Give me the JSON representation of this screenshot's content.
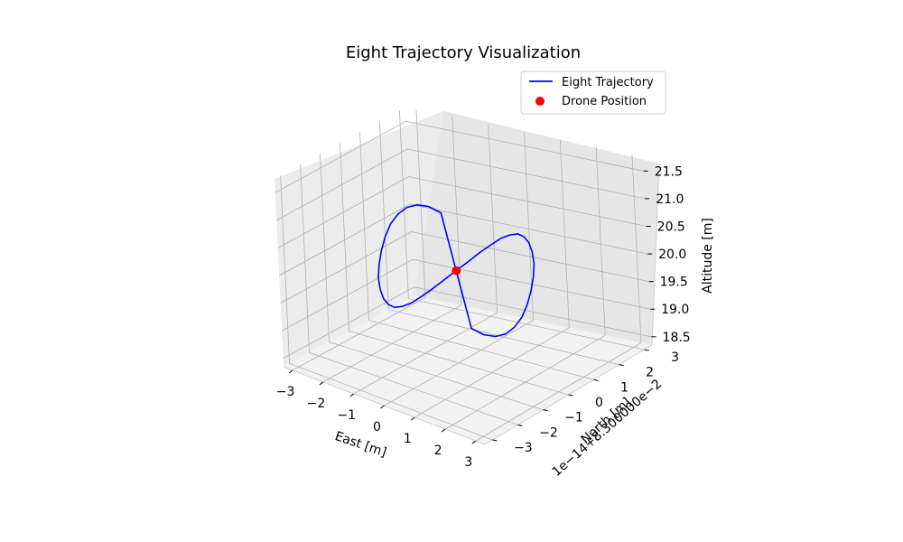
{
  "chart_data": {
    "type": "line",
    "projection": "3d",
    "title": "Eight Trajectory Visualization",
    "xlabel": "East [m]",
    "ylabel": "North [m]",
    "zlabel": "Altitude [m]",
    "offset_text": "1e−14+8.300000e−2",
    "xlim": [
      -3.3,
      3.3
    ],
    "ylim": [
      -3.3,
      3.3
    ],
    "zlim": [
      18.35,
      21.75
    ],
    "x_ticks": [
      "−3",
      "−2",
      "−1",
      "0",
      "1",
      "2",
      "3"
    ],
    "y_ticks": [
      "−3",
      "−2",
      "−1",
      "0",
      "1",
      "2",
      "3"
    ],
    "z_ticks": [
      "18.5",
      "19.0",
      "19.5",
      "20.0",
      "20.5",
      "21.0",
      "21.5"
    ],
    "grid": true,
    "legend_position": "upper right",
    "series": [
      {
        "name": "Eight Trajectory",
        "kind": "line",
        "color": "#0000ff",
        "x": [
          0.0,
          0.38,
          0.75,
          1.1,
          1.41,
          1.69,
          1.93,
          2.11,
          2.25,
          2.34,
          2.38,
          2.34,
          2.25,
          2.11,
          1.93,
          1.69,
          1.41,
          1.1,
          0.75,
          0.38,
          0.0,
          -0.38,
          -0.75,
          -1.1,
          -1.41,
          -1.69,
          -1.93,
          -2.11,
          -2.25,
          -2.34,
          -2.38,
          -2.34,
          -2.25,
          -2.11,
          -1.93,
          -1.69,
          -1.41,
          -1.1,
          -0.75,
          -0.38,
          0.0
        ],
        "y": [
          0.083,
          0.083,
          0.083,
          0.083,
          0.083,
          0.083,
          0.083,
          0.083,
          0.083,
          0.083,
          0.083,
          0.083,
          0.083,
          0.083,
          0.083,
          0.083,
          0.083,
          0.083,
          0.083,
          0.083,
          0.083,
          0.083,
          0.083,
          0.083,
          0.083,
          0.083,
          0.083,
          0.083,
          0.083,
          0.083,
          0.083,
          0.083,
          0.083,
          0.083,
          0.083,
          0.083,
          0.083,
          0.083,
          0.083,
          0.083,
          0.083
        ],
        "z": [
          20.0,
          20.23,
          20.46,
          20.66,
          20.83,
          20.94,
          21.0,
          20.98,
          20.9,
          20.75,
          20.54,
          20.3,
          20.03,
          19.75,
          19.49,
          19.27,
          19.1,
          19.0,
          18.97,
          19.02,
          20.0,
          20.98,
          21.03,
          21.0,
          20.9,
          20.73,
          20.51,
          20.25,
          19.97,
          19.7,
          19.46,
          19.25,
          19.1,
          19.02,
          19.0,
          19.06,
          19.17,
          19.34,
          19.54,
          19.77,
          20.0
        ]
      },
      {
        "name": "Drone Position",
        "kind": "scatter",
        "color": "#ff0000",
        "x": [
          0.0
        ],
        "y": [
          0.083
        ],
        "z": [
          20.0
        ]
      }
    ]
  }
}
